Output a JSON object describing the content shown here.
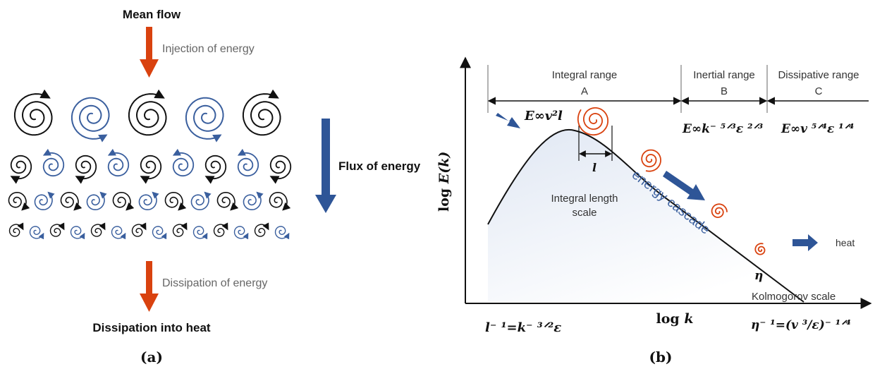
{
  "panel_a": {
    "top_title": "Mean flow",
    "injection_label": "Injection of energy",
    "flux_label": "Flux of energy",
    "dissipation_label": "Dissipation of energy",
    "bottom_title": "Dissipation into heat",
    "caption": "(a)",
    "colors": {
      "black_eddy": "#111111",
      "blue_eddy": "#3a5f9e",
      "arrow_orange": "#d9420f",
      "arrow_blue": "#2e5597"
    }
  },
  "panel_b": {
    "y_axis_label": "log E(k)",
    "x_axis_label": "log k",
    "ranges": [
      {
        "name": "Integral range",
        "letter": "A",
        "formula": "E∞v²l"
      },
      {
        "name": "Inertial range",
        "letter": "B",
        "formula": "E∞k⁻ ⁵ᐟ³ε ²ᐟ³"
      },
      {
        "name": "Dissipative range",
        "letter": "C",
        "formula": "E∞v ⁵ᐟ⁴ε ¹ᐟ⁴"
      }
    ],
    "integral_length_label": "Integral length\nscale",
    "l_symbol": "l",
    "cascade_label": "energy cascade",
    "eta_symbol": "η",
    "heat_label": "heat",
    "kolmogorov_label": "Kolmogorov scale",
    "left_formula": "l⁻ ¹=k⁻ ³ᐟ²ε",
    "right_formula": "η⁻ ¹=(v ³/ε)⁻ ¹ᐟ⁴",
    "caption": "(b)",
    "colors": {
      "curve": "#111111",
      "spiral": "#d9420f",
      "cascade_text": "#3a5f9e",
      "arrow_blue": "#2e5597",
      "fill": "#e6ecf6"
    }
  }
}
